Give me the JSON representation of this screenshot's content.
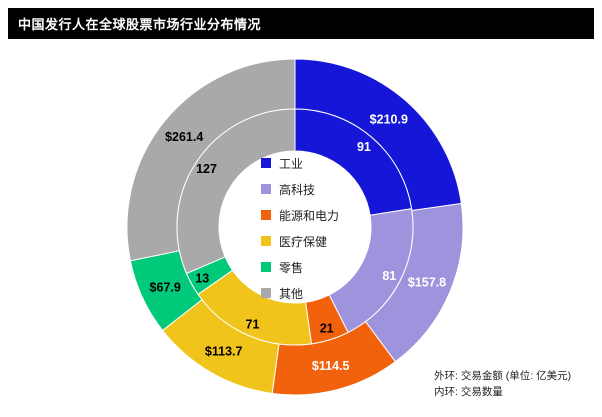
{
  "title": "中国发行人在全球股票市场行业分布情况",
  "footnotes": [
    "外环: 交易金额 (单位: 亿美元)",
    "内环: 交易数量"
  ],
  "chart_data": {
    "type": "pie",
    "variant": "double-ring-donut",
    "direction": "clockwise-from-top",
    "legend_position": "center",
    "categories": [
      "工业",
      "高科技",
      "能源和电力",
      "医疗保健",
      "零售",
      "其他"
    ],
    "colors": [
      "#1616d9",
      "#9e94de",
      "#f2620c",
      "#f0c41a",
      "#00c97a",
      "#a9a9a9"
    ],
    "series": [
      {
        "name": "交易金额",
        "ring": "outer",
        "unit": "亿美元",
        "values": [
          210.9,
          157.8,
          114.5,
          113.7,
          67.9,
          261.4
        ],
        "labels": [
          "$210.9",
          "$157.8",
          "$114.5",
          "$113.7",
          "$67.9",
          "$261.4"
        ],
        "label_colors": [
          "#ffffff",
          "#ffffff",
          "#ffffff",
          "#000000",
          "#000000",
          "#000000"
        ]
      },
      {
        "name": "交易数量",
        "ring": "inner",
        "values": [
          91,
          81,
          21,
          71,
          13,
          127
        ],
        "labels": [
          "91",
          "81",
          "21",
          "71",
          "13",
          "127"
        ],
        "label_colors": [
          "#ffffff",
          "#ffffff",
          "#000000",
          "#000000",
          "#000000",
          "#000000"
        ]
      }
    ]
  }
}
